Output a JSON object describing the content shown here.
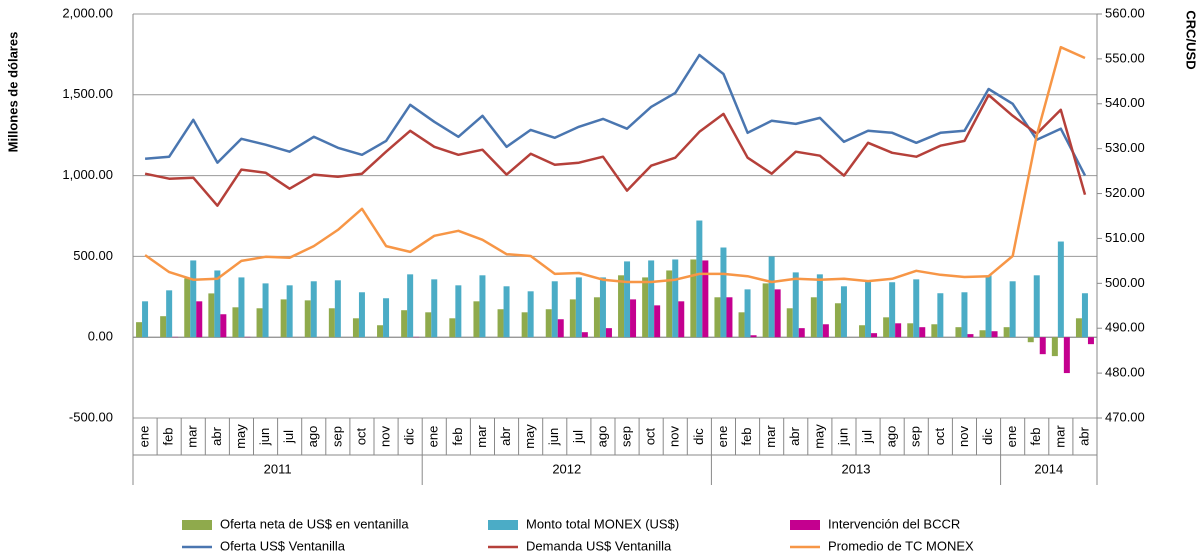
{
  "chart_data": {
    "type": "combo",
    "y_label": "Millones de dólares",
    "y2_label": "CRC/USD",
    "categories": [
      "ene",
      "feb",
      "mar",
      "abr",
      "may",
      "jun",
      "jul",
      "ago",
      "sep",
      "oct",
      "nov",
      "dic",
      "ene",
      "feb",
      "mar",
      "abr",
      "may",
      "jun",
      "jul",
      "ago",
      "sep",
      "oct",
      "nov",
      "dic",
      "ene",
      "feb",
      "mar",
      "abr",
      "may",
      "jun",
      "jul",
      "ago",
      "sep",
      "oct",
      "nov",
      "dic",
      "ene",
      "feb",
      "mar",
      "abr"
    ],
    "year_groups": [
      {
        "label": "2011",
        "span": 12
      },
      {
        "label": "2012",
        "span": 12
      },
      {
        "label": "2013",
        "span": 12
      },
      {
        "label": "2014",
        "span": 4
      }
    ],
    "ylim": [
      -500,
      2000
    ],
    "yticks": [
      {
        "value": -500,
        "label": "-500.00"
      },
      {
        "value": 0,
        "label": "0.00"
      },
      {
        "value": 500,
        "label": "500.00"
      },
      {
        "value": 1000,
        "label": "1,000.00"
      },
      {
        "value": 1500,
        "label": "1,500.00"
      },
      {
        "value": 2000,
        "label": "2,000.00"
      }
    ],
    "y2lim": [
      470,
      560
    ],
    "y2ticks": [
      {
        "value": 470,
        "label": "470.00"
      },
      {
        "value": 480,
        "label": "480.00"
      },
      {
        "value": 490,
        "label": "490.00"
      },
      {
        "value": 500,
        "label": "500.00"
      },
      {
        "value": 510,
        "label": "510.00"
      },
      {
        "value": 520,
        "label": "520.00"
      },
      {
        "value": 530,
        "label": "530.00"
      },
      {
        "value": 540,
        "label": "540.00"
      },
      {
        "value": 550,
        "label": "550.00"
      },
      {
        "value": 560,
        "label": "560.00"
      }
    ],
    "grid": true,
    "series": [
      {
        "name": "Oferta neta de US$ en ventanilla",
        "type": "bar",
        "color": "#8faa4c",
        "values": [
          93,
          130,
          364,
          271,
          185,
          179,
          234,
          228,
          179,
          117,
          74,
          167,
          154,
          117,
          222,
          173,
          154,
          173,
          234,
          247,
          383,
          370,
          413,
          481,
          247,
          154,
          333,
          179,
          247,
          210,
          74,
          123,
          86,
          80,
          62,
          43,
          62,
          -31,
          -117,
          117
        ]
      },
      {
        "name": "Monto total MONEX (US$)",
        "type": "bar",
        "color": "#4bacc6",
        "values": [
          222,
          290,
          475,
          413,
          370,
          333,
          321,
          346,
          352,
          278,
          241,
          389,
          358,
          321,
          383,
          315,
          284,
          346,
          370,
          370,
          469,
          475,
          481,
          722,
          555,
          296,
          500,
          401,
          389,
          315,
          346,
          340,
          358,
          272,
          278,
          383,
          346,
          383,
          592,
          272
        ]
      },
      {
        "name": "Intervención del BCCR",
        "type": "bar",
        "color": "#c4008f",
        "values": [
          0,
          2,
          222,
          142,
          2,
          0,
          0,
          0,
          0,
          0,
          0,
          2,
          0,
          0,
          0,
          0,
          0,
          111,
          31,
          56,
          234,
          197,
          222,
          475,
          247,
          12,
          296,
          56,
          80,
          0,
          25,
          86,
          62,
          0,
          19,
          37,
          0,
          -105,
          -222,
          -43
        ]
      },
      {
        "name": "Oferta US$ Ventanilla",
        "type": "line",
        "color": "#4a76b0",
        "values": [
          1104,
          1117,
          1345,
          1080,
          1228,
          1191,
          1148,
          1240,
          1172,
          1129,
          1215,
          1438,
          1333,
          1240,
          1370,
          1178,
          1283,
          1234,
          1302,
          1351,
          1290,
          1425,
          1512,
          1746,
          1629,
          1265,
          1339,
          1320,
          1357,
          1209,
          1277,
          1265,
          1203,
          1265,
          1277,
          1536,
          1444,
          1222,
          1290,
          1000
        ]
      },
      {
        "name": "Demanda US$ Ventanilla",
        "type": "line",
        "color": "#b5403a",
        "values": [
          1012,
          981,
          987,
          814,
          1037,
          1018,
          919,
          1006,
          993,
          1012,
          1148,
          1277,
          1178,
          1129,
          1160,
          1006,
          1135,
          1067,
          1080,
          1117,
          907,
          1061,
          1111,
          1271,
          1382,
          1111,
          1012,
          1148,
          1123,
          1000,
          1203,
          1141,
          1117,
          1185,
          1215,
          1499,
          1370,
          1259,
          1407,
          882
        ]
      },
      {
        "name": "Promedio de TC MONEX",
        "type": "line",
        "color": "#f79646",
        "axis": "y2",
        "values": [
          506.3,
          502.5,
          500.8,
          501.0,
          505.0,
          505.9,
          505.7,
          508.3,
          511.9,
          516.6,
          508.3,
          507.0,
          510.6,
          511.7,
          509.7,
          506.5,
          506.1,
          502.1,
          502.3,
          500.8,
          500.3,
          500.3,
          500.8,
          502.1,
          502.1,
          501.6,
          500.3,
          501.0,
          500.8,
          501.0,
          500.5,
          501.0,
          502.8,
          501.9,
          501.4,
          501.6,
          506.1,
          533.0,
          552.6,
          550.2
        ]
      }
    ]
  }
}
